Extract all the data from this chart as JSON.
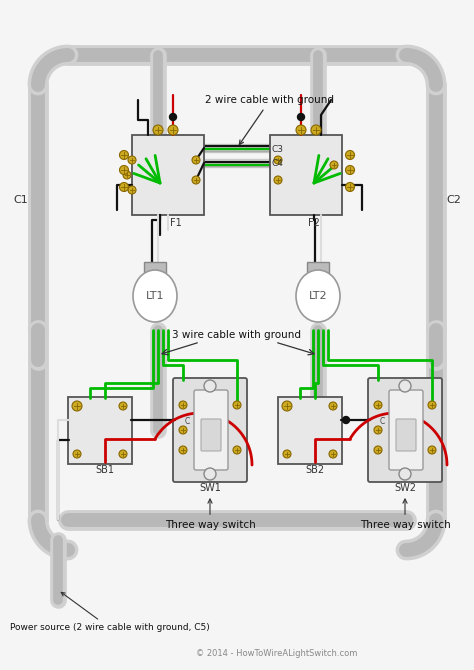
{
  "bg_color": "#f5f5f5",
  "wire": {
    "black": "#111111",
    "red": "#cc0000",
    "green": "#00bb00",
    "white": "#dddddd",
    "bare": "#ccaa00"
  },
  "cond_outer": "#d0d0d0",
  "cond_inner": "#b8b8b8",
  "box_fill": "#e8e8e8",
  "box_edge": "#555555",
  "screw_fill": "#ccaa22",
  "screw_edge": "#886600",
  "labels": {
    "C1": "C1",
    "C2": "C2",
    "C3": "C3",
    "C4": "C4",
    "F1": "F1",
    "F2": "F2",
    "LT1": "LT1",
    "LT2": "LT2",
    "SB1": "SB1",
    "SB2": "SB2",
    "SW1": "SW1",
    "SW2": "SW2",
    "cable2": "2 wire cable with ground",
    "cable3": "3 wire cable with ground",
    "sw_label": "Three way switch",
    "power": "Power source (2 wire cable with ground, C5)",
    "copy": "© 2014 - HowToWireALightSwitch.com"
  }
}
